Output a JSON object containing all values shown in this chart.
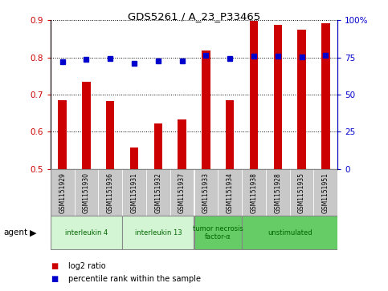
{
  "title": "GDS5261 / A_23_P33465",
  "samples": [
    "GSM1151929",
    "GSM1151930",
    "GSM1151936",
    "GSM1151931",
    "GSM1151932",
    "GSM1151937",
    "GSM1151933",
    "GSM1151934",
    "GSM1151938",
    "GSM1151928",
    "GSM1151935",
    "GSM1151951"
  ],
  "log2_ratio": [
    0.685,
    0.735,
    0.682,
    0.558,
    0.623,
    0.633,
    0.818,
    0.685,
    0.898,
    0.887,
    0.874,
    0.892
  ],
  "percentile_rank": [
    72,
    73.5,
    74.5,
    71,
    72.5,
    72.5,
    76.5,
    74.5,
    76,
    76,
    75.5,
    76.5
  ],
  "agents": [
    {
      "label": "interleukin 4",
      "start": 0,
      "end": 3,
      "color": "#d4f5d4"
    },
    {
      "label": "interleukin 13",
      "start": 3,
      "end": 6,
      "color": "#d4f5d4"
    },
    {
      "label": "tumor necrosis\nfactor-α",
      "start": 6,
      "end": 8,
      "color": "#66cc66"
    },
    {
      "label": "unstimulated",
      "start": 8,
      "end": 12,
      "color": "#66cc66"
    }
  ],
  "ylim_left": [
    0.5,
    0.9
  ],
  "ylim_right": [
    0,
    100
  ],
  "yticks_left": [
    0.5,
    0.6,
    0.7,
    0.8,
    0.9
  ],
  "yticks_right": [
    0,
    25,
    50,
    75,
    100
  ],
  "bar_color": "#cc0000",
  "marker_color": "#0000cc",
  "plot_bg_color": "#ffffff",
  "sample_cell_color": "#c8c8c8",
  "agent_label": "agent",
  "legend_log2": "log2 ratio",
  "legend_pct": "percentile rank within the sample"
}
